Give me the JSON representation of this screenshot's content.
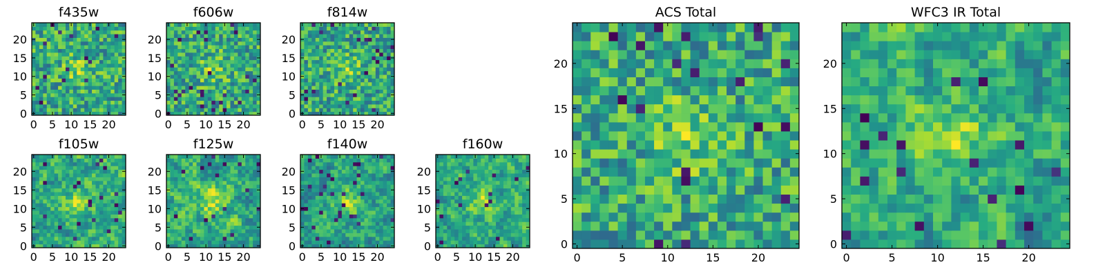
{
  "figure": {
    "background": "#ffffff"
  },
  "chart_data": [
    {
      "type": "heatmap",
      "title": "f435w",
      "grid_size": 25,
      "colormap": "viridis",
      "xlim": [
        0,
        24
      ],
      "ylim": [
        0,
        24
      ],
      "xticks": [
        "0",
        "5",
        "10",
        "15",
        "20"
      ],
      "yticks": [
        "0",
        "5",
        "10",
        "15",
        "20"
      ],
      "pattern": "noise",
      "seed": 11
    },
    {
      "type": "heatmap",
      "title": "f606w",
      "grid_size": 25,
      "colormap": "viridis",
      "xlim": [
        0,
        24
      ],
      "ylim": [
        0,
        24
      ],
      "xticks": [
        "0",
        "5",
        "10",
        "15",
        "20"
      ],
      "yticks": [
        "0",
        "5",
        "10",
        "15",
        "20"
      ],
      "pattern": "noise",
      "seed": 23
    },
    {
      "type": "heatmap",
      "title": "f814w",
      "grid_size": 25,
      "colormap": "viridis",
      "xlim": [
        0,
        24
      ],
      "ylim": [
        0,
        24
      ],
      "xticks": [
        "0",
        "5",
        "10",
        "15",
        "20"
      ],
      "yticks": [
        "0",
        "5",
        "10",
        "15",
        "20"
      ],
      "pattern": "noise",
      "seed": 37
    },
    {
      "type": "heatmap",
      "title": "f105w",
      "grid_size": 25,
      "colormap": "viridis",
      "xlim": [
        0,
        24
      ],
      "ylim": [
        0,
        24
      ],
      "xticks": [
        "0",
        "5",
        "10",
        "15",
        "20"
      ],
      "yticks": [
        "0",
        "5",
        "10",
        "15",
        "20"
      ],
      "pattern": "smooth",
      "seed": 41
    },
    {
      "type": "heatmap",
      "title": "f125w",
      "grid_size": 25,
      "colormap": "viridis",
      "xlim": [
        0,
        24
      ],
      "ylim": [
        0,
        24
      ],
      "xticks": [
        "0",
        "5",
        "10",
        "15",
        "20"
      ],
      "yticks": [
        "0",
        "5",
        "10",
        "15",
        "20"
      ],
      "pattern": "smooth",
      "seed": 53
    },
    {
      "type": "heatmap",
      "title": "f140w",
      "grid_size": 25,
      "colormap": "viridis",
      "xlim": [
        0,
        24
      ],
      "ylim": [
        0,
        24
      ],
      "xticks": [
        "0",
        "5",
        "10",
        "15",
        "20"
      ],
      "yticks": [
        "0",
        "5",
        "10",
        "15",
        "20"
      ],
      "pattern": "smooth",
      "seed": 67
    },
    {
      "type": "heatmap",
      "title": "f160w",
      "grid_size": 25,
      "colormap": "viridis",
      "xlim": [
        0,
        24
      ],
      "ylim": [
        0,
        24
      ],
      "xticks": [
        "0",
        "5",
        "10",
        "15",
        "20"
      ],
      "yticks": [
        "0",
        "5",
        "10",
        "15",
        "20"
      ],
      "pattern": "smooth",
      "seed": 79
    },
    {
      "type": "heatmap",
      "title": "ACS Total",
      "grid_size": 25,
      "colormap": "viridis",
      "xlim": [
        0,
        24
      ],
      "ylim": [
        0,
        24
      ],
      "xticks": [
        "0",
        "5",
        "10",
        "15",
        "20"
      ],
      "yticks": [
        "0",
        "5",
        "10",
        "15",
        "20"
      ],
      "pattern": "noise",
      "seed": 97
    },
    {
      "type": "heatmap",
      "title": "WFC3 IR Total",
      "grid_size": 25,
      "colormap": "viridis",
      "xlim": [
        0,
        24
      ],
      "ylim": [
        0,
        24
      ],
      "xticks": [
        "0",
        "5",
        "10",
        "15",
        "20"
      ],
      "yticks": [
        "0",
        "5",
        "10",
        "15",
        "20"
      ],
      "pattern": "smooth",
      "seed": 131
    }
  ]
}
